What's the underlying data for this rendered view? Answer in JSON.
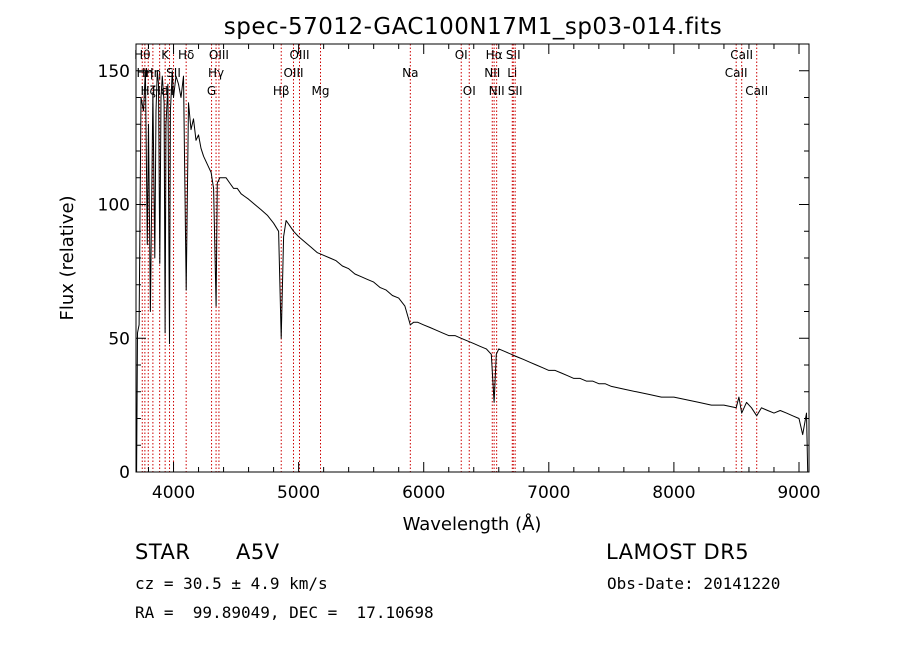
{
  "chart_data": {
    "type": "line",
    "title": "spec-57012-GAC100N17M1_sp03-014.fits",
    "xlabel": "Wavelength (Å)",
    "ylabel": "Flux (relative)",
    "xlim": [
      3700,
      9080
    ],
    "ylim": [
      0,
      160
    ],
    "xticks": [
      4000,
      5000,
      6000,
      7000,
      8000,
      9000
    ],
    "yticks": [
      0,
      50,
      100,
      150
    ],
    "xtick_labels": [
      "4000",
      "5000",
      "6000",
      "7000",
      "8000",
      "9000"
    ],
    "ytick_labels": [
      "0",
      "50",
      "100",
      "150"
    ],
    "grid": false,
    "line_color": "#000000",
    "marker_color": "#cc0000",
    "series": [
      {
        "x": [
          3705,
          3712,
          3725,
          3740,
          3760,
          3775,
          3790,
          3800,
          3815,
          3835,
          3850,
          3860,
          3870,
          3880,
          3890,
          3900,
          3910,
          3925,
          3933,
          3940,
          3955,
          3968,
          3975,
          3990,
          4000,
          4020,
          4040,
          4060,
          4080,
          4101,
          4120,
          4140,
          4160,
          4180,
          4200,
          4220,
          4240,
          4260,
          4280,
          4300,
          4320,
          4340,
          4350,
          4370,
          4390,
          4420,
          4450,
          4480,
          4510,
          4540,
          4570,
          4600,
          4650,
          4700,
          4750,
          4800,
          4840,
          4861,
          4880,
          4900,
          4930,
          4960,
          5000,
          5050,
          5100,
          5150,
          5200,
          5250,
          5300,
          5350,
          5400,
          5450,
          5500,
          5550,
          5600,
          5650,
          5700,
          5750,
          5800,
          5850,
          5893,
          5920,
          5950,
          6000,
          6050,
          6100,
          6150,
          6200,
          6250,
          6300,
          6350,
          6400,
          6450,
          6500,
          6540,
          6563,
          6580,
          6600,
          6650,
          6700,
          6750,
          6800,
          6850,
          6900,
          6950,
          7000,
          7050,
          7100,
          7150,
          7200,
          7250,
          7300,
          7350,
          7400,
          7450,
          7500,
          7600,
          7700,
          7800,
          7900,
          8000,
          8100,
          8200,
          8300,
          8400,
          8498,
          8520,
          8542,
          8580,
          8620,
          8662,
          8700,
          8750,
          8800,
          8850,
          8900,
          8950,
          9000,
          9030,
          9060,
          9070
        ],
        "y": [
          0,
          52,
          55,
          140,
          135,
          150,
          85,
          130,
          60,
          142,
          80,
          135,
          150,
          145,
          78,
          140,
          148,
          138,
          52,
          130,
          145,
          48,
          135,
          150,
          140,
          148,
          145,
          140,
          148,
          68,
          138,
          128,
          132,
          124,
          126,
          121,
          118,
          116,
          114,
          112,
          106,
          62,
          108,
          110,
          110,
          110,
          108,
          106,
          106,
          104,
          103,
          102,
          100,
          98,
          96,
          93,
          90,
          50,
          88,
          94,
          92,
          90,
          88,
          86,
          84,
          82,
          81,
          80,
          79,
          77,
          76,
          74,
          73,
          72,
          71,
          69,
          68,
          66,
          65,
          62,
          55,
          56,
          56,
          55,
          54,
          53,
          52,
          51,
          51,
          50,
          49,
          48,
          47,
          46,
          44,
          26,
          44,
          46,
          45,
          44,
          43,
          42,
          41,
          40,
          39,
          38,
          38,
          37,
          36,
          35,
          35,
          34,
          34,
          33,
          33,
          32,
          31,
          30,
          29,
          28,
          28,
          27,
          26,
          25,
          25,
          24,
          28,
          22,
          26,
          24,
          21,
          24,
          23,
          22,
          23,
          22,
          21,
          20,
          14,
          22,
          0
        ]
      }
    ],
    "line_markers": [
      {
        "wavelength": 3750,
        "label": "Hθ",
        "row": 0
      },
      {
        "wavelength": 3771,
        "label": "Hη",
        "row": 1
      },
      {
        "wavelength": 3798,
        "label": "Hζ",
        "row": 2
      },
      {
        "wavelength": 3835,
        "label": "Hη",
        "row": 1
      },
      {
        "wavelength": 3889,
        "label": "Hε",
        "row": 2
      },
      {
        "wavelength": 3933,
        "label": "K",
        "row": 0
      },
      {
        "wavelength": 3968,
        "label": "H",
        "row": 2
      },
      {
        "wavelength": 4000,
        "label": "SII",
        "row": 1
      },
      {
        "wavelength": 4101,
        "label": "Hδ",
        "row": 0
      },
      {
        "wavelength": 4304,
        "label": "G",
        "row": 2
      },
      {
        "wavelength": 4340,
        "label": "Hγ",
        "row": 1
      },
      {
        "wavelength": 4363,
        "label": "OIII",
        "row": 0
      },
      {
        "wavelength": 4861,
        "label": "Hβ",
        "row": 2
      },
      {
        "wavelength": 4959,
        "label": "OIII",
        "row": 1
      },
      {
        "wavelength": 5007,
        "label": "OIII",
        "row": 0
      },
      {
        "wavelength": 5175,
        "label": "Mg",
        "row": 2
      },
      {
        "wavelength": 5893,
        "label": "Na",
        "row": 1
      },
      {
        "wavelength": 6300,
        "label": "OI",
        "row": 0
      },
      {
        "wavelength": 6364,
        "label": "OI",
        "row": 2
      },
      {
        "wavelength": 6548,
        "label": "NII",
        "row": 1
      },
      {
        "wavelength": 6563,
        "label": "Hα",
        "row": 0
      },
      {
        "wavelength": 6583,
        "label": "NII",
        "row": 2
      },
      {
        "wavelength": 6708,
        "label": "Li",
        "row": 1
      },
      {
        "wavelength": 6716,
        "label": "SII",
        "row": 0
      },
      {
        "wavelength": 6731,
        "label": "SII",
        "row": 2
      },
      {
        "wavelength": 8498,
        "label": "CaII",
        "row": 1
      },
      {
        "wavelength": 8542,
        "label": "CaII",
        "row": 0
      },
      {
        "wavelength": 8662,
        "label": "CaII",
        "row": 2
      }
    ]
  },
  "info": {
    "object_class": "STAR",
    "subclass": "A5V",
    "survey": "LAMOST DR5",
    "redshift": "cz = 30.5 ± 4.9 km/s",
    "obs_date": "Obs-Date: 20141220",
    "coords": "RA =  99.89049, DEC =  17.10698"
  }
}
